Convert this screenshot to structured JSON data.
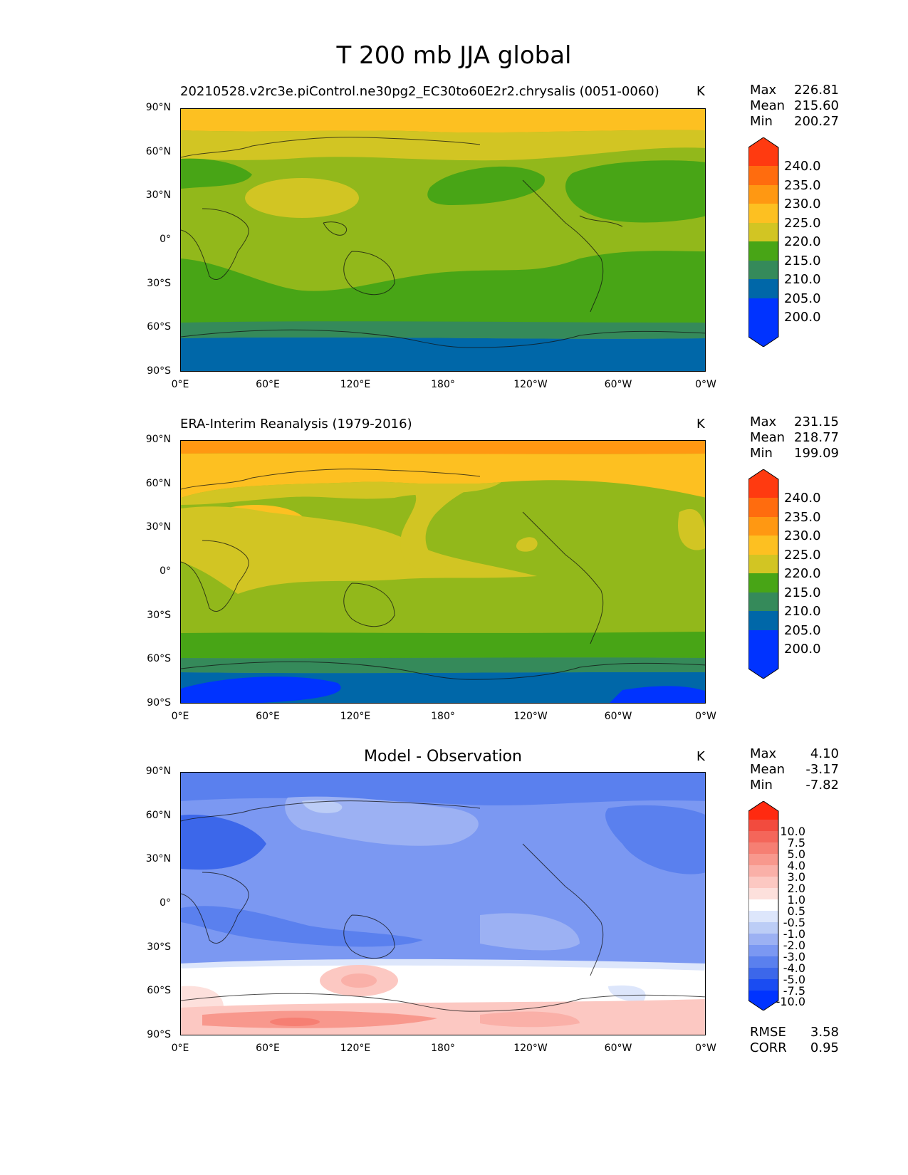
{
  "title": "T 200 mb JJA global",
  "axes": {
    "lat_ticks": [
      "90°N",
      "60°N",
      "30°N",
      "0°",
      "30°S",
      "60°S",
      "90°S"
    ],
    "lon_ticks": [
      "0°E",
      "60°E",
      "120°E",
      "180°",
      "120°W",
      "60°W",
      "0°W"
    ]
  },
  "panels": [
    {
      "title": "20210528.v2rc3e.piControl.ne30pg2_EC30to60E2r2.chrysalis (0051-0060)",
      "units": "K",
      "stats": {
        "max_label": "Max",
        "max": "226.81",
        "mean_label": "Mean",
        "mean": "215.60",
        "min_label": "Min",
        "min": "200.27"
      },
      "colorbar_labels": [
        "240.0",
        "235.0",
        "230.0",
        "225.0",
        "220.0",
        "215.0",
        "210.0",
        "205.0",
        "200.0"
      ]
    },
    {
      "title": "ERA-Interim Reanalysis (1979-2016)",
      "units": "K",
      "stats": {
        "max_label": "Max",
        "max": "231.15",
        "mean_label": "Mean",
        "mean": "218.77",
        "min_label": "Min",
        "min": "199.09"
      },
      "colorbar_labels": [
        "240.0",
        "235.0",
        "230.0",
        "225.0",
        "220.0",
        "215.0",
        "210.0",
        "205.0",
        "200.0"
      ]
    },
    {
      "title": "Model - Observation",
      "units": "K",
      "stats": {
        "max_label": "Max",
        "max": "4.10",
        "mean_label": "Mean",
        "mean": "-3.17",
        "min_label": "Min",
        "min": "-7.82"
      },
      "colorbar_labels": [
        "10.0",
        "7.5",
        "5.0",
        "4.0",
        "3.0",
        "2.0",
        "1.0",
        "0.5",
        "-0.5",
        "-1.0",
        "-2.0",
        "-3.0",
        "-4.0",
        "-5.0",
        "-7.5",
        "-10.0"
      ],
      "metrics": {
        "rmse_label": "RMSE",
        "rmse": "3.58",
        "corr_label": "CORR",
        "corr": "0.95"
      }
    }
  ],
  "colors": {
    "abs_scale": [
      "#0033ff",
      "#0067a8",
      "#358a5a",
      "#48a516",
      "#92b81b",
      "#d2c523",
      "#fdc021",
      "#ff9812",
      "#ff6c0e",
      "#ff3a10"
    ],
    "diff_scale": [
      "#0033ff",
      "#1a4cf2",
      "#3c67ea",
      "#5a80ee",
      "#7b98f2",
      "#9cb1f3",
      "#bccdf6",
      "#dde6fb",
      "#ffffff",
      "#fde0dc",
      "#fcc8c2",
      "#fab0a8",
      "#f8988d",
      "#f67f73",
      "#f4665a",
      "#f24b3e",
      "#ff2a10"
    ]
  }
}
